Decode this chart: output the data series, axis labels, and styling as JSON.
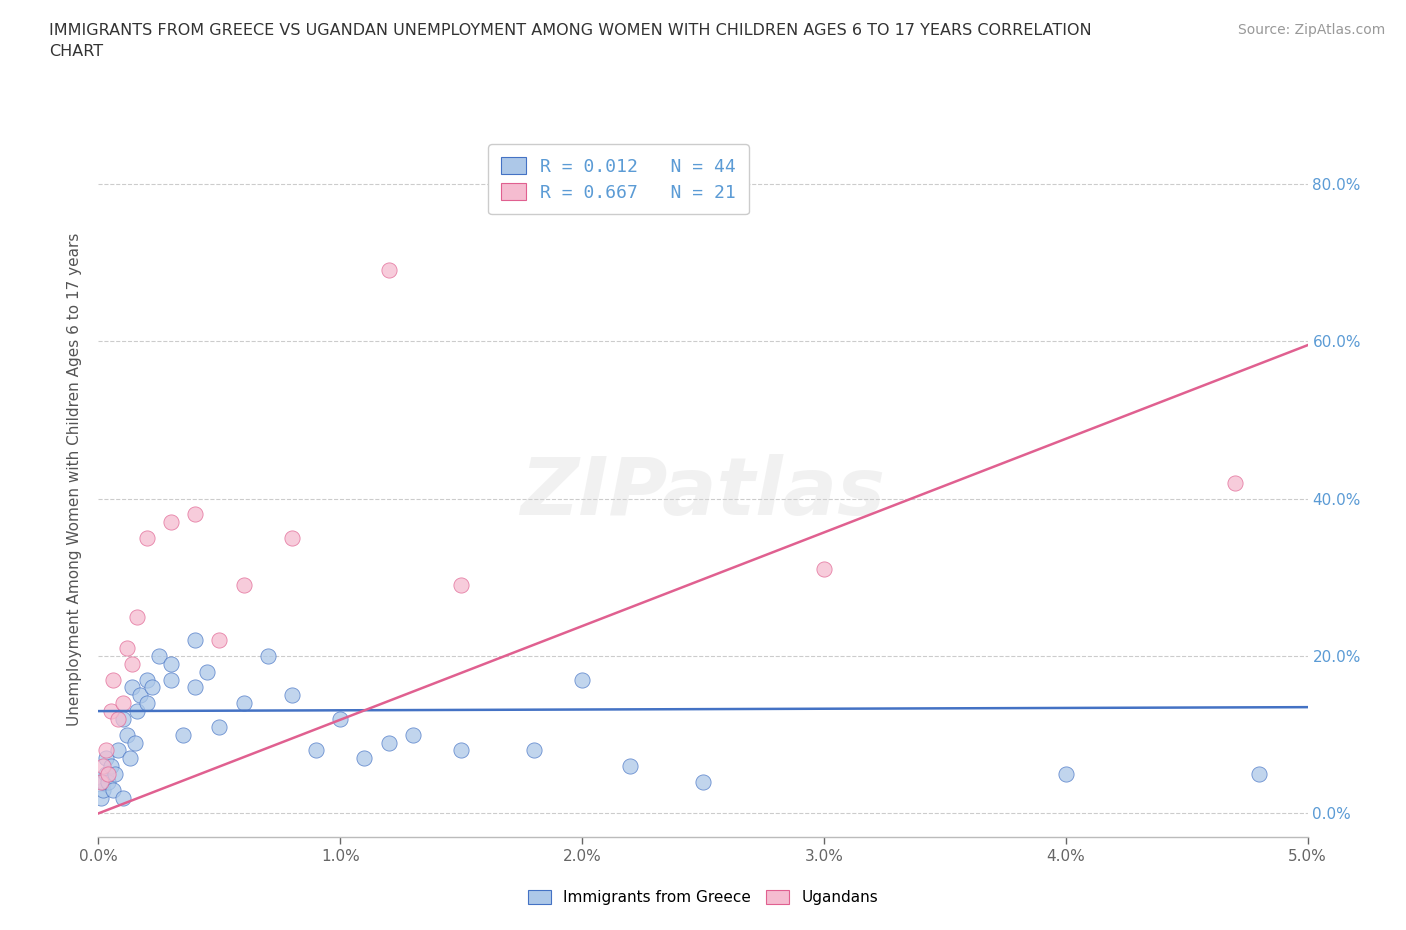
{
  "title": "IMMIGRANTS FROM GREECE VS UGANDAN UNEMPLOYMENT AMONG WOMEN WITH CHILDREN AGES 6 TO 17 YEARS CORRELATION\nCHART",
  "source": "Source: ZipAtlas.com",
  "ylabel": "Unemployment Among Women with Children Ages 6 to 17 years",
  "xlim": [
    0.0,
    0.05
  ],
  "ylim": [
    -0.03,
    0.88
  ],
  "xticks": [
    0.0,
    0.01,
    0.02,
    0.03,
    0.04,
    0.05
  ],
  "yticks": [
    0.0,
    0.2,
    0.4,
    0.6,
    0.8
  ],
  "ytick_labels": [
    "0.0%",
    "20.0%",
    "40.0%",
    "60.0%",
    "80.0%"
  ],
  "xtick_labels": [
    "0.0%",
    "1.0%",
    "2.0%",
    "3.0%",
    "4.0%",
    "5.0%"
  ],
  "greece_color": "#adc8e8",
  "uganda_color": "#f5bcd0",
  "greece_line_color": "#4472c4",
  "uganda_line_color": "#e06090",
  "R_greece": 0.012,
  "N_greece": 44,
  "R_uganda": 0.667,
  "N_uganda": 21,
  "greece_scatter_x": [
    0.0001,
    0.0002,
    0.0002,
    0.0003,
    0.0003,
    0.0004,
    0.0005,
    0.0006,
    0.0007,
    0.0008,
    0.001,
    0.001,
    0.0012,
    0.0013,
    0.0014,
    0.0015,
    0.0016,
    0.0017,
    0.002,
    0.002,
    0.0022,
    0.0025,
    0.003,
    0.003,
    0.0035,
    0.004,
    0.004,
    0.0045,
    0.005,
    0.006,
    0.007,
    0.008,
    0.009,
    0.01,
    0.011,
    0.012,
    0.013,
    0.015,
    0.018,
    0.02,
    0.022,
    0.025,
    0.04,
    0.048
  ],
  "greece_scatter_y": [
    0.02,
    0.03,
    0.04,
    0.05,
    0.07,
    0.04,
    0.06,
    0.03,
    0.05,
    0.08,
    0.02,
    0.12,
    0.1,
    0.07,
    0.16,
    0.09,
    0.13,
    0.15,
    0.14,
    0.17,
    0.16,
    0.2,
    0.17,
    0.19,
    0.1,
    0.22,
    0.16,
    0.18,
    0.11,
    0.14,
    0.2,
    0.15,
    0.08,
    0.12,
    0.07,
    0.09,
    0.1,
    0.08,
    0.08,
    0.17,
    0.06,
    0.04,
    0.05,
    0.05
  ],
  "uganda_scatter_x": [
    0.0001,
    0.0002,
    0.0003,
    0.0004,
    0.0005,
    0.0006,
    0.0008,
    0.001,
    0.0012,
    0.0014,
    0.0016,
    0.002,
    0.003,
    0.004,
    0.005,
    0.006,
    0.008,
    0.012,
    0.015,
    0.03,
    0.047
  ],
  "uganda_scatter_y": [
    0.04,
    0.06,
    0.08,
    0.05,
    0.13,
    0.17,
    0.12,
    0.14,
    0.21,
    0.19,
    0.25,
    0.35,
    0.37,
    0.38,
    0.22,
    0.29,
    0.35,
    0.69,
    0.29,
    0.31,
    0.42
  ],
  "greece_trendline_x": [
    0.0,
    0.05
  ],
  "greece_trendline_y": [
    0.13,
    0.135
  ],
  "uganda_trendline_x": [
    0.0,
    0.05
  ],
  "uganda_trendline_y": [
    0.0,
    0.595
  ],
  "watermark": "ZIPatlas",
  "background_color": "#ffffff",
  "grid_color": "#cccccc",
  "title_color": "#333333",
  "axis_label_color": "#555555",
  "tick_color": "#666666",
  "right_tick_color": "#5b9bd5"
}
